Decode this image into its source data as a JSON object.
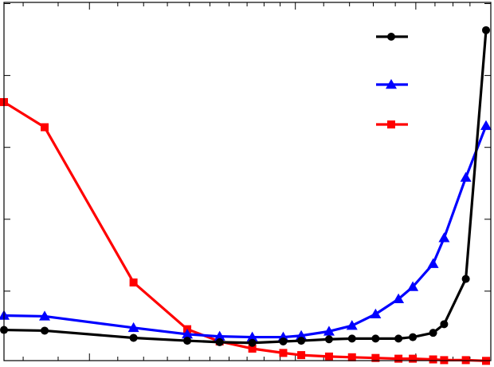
{
  "chart_data": {
    "type": "line",
    "x_scale": "log",
    "y_scale": "linear",
    "grid": false,
    "legend_position": "top-right",
    "xlim": [
      0.75,
      3.8
    ],
    "ylim": [
      0.0,
      0.505
    ],
    "x_major_ticks": [
      1,
      2,
      3
    ],
    "y_major_ticks": [
      0.1,
      0.2,
      0.3,
      0.4,
      0.5
    ],
    "series": [
      {
        "color": "#000000",
        "marker": "circle",
        "points": [
          {
            "x": 0.75,
            "y": 0.046
          },
          {
            "x": 0.86,
            "y": 0.045
          },
          {
            "x": 1.16,
            "y": 0.035
          },
          {
            "x": 1.39,
            "y": 0.031
          },
          {
            "x": 1.55,
            "y": 0.029
          },
          {
            "x": 1.73,
            "y": 0.028
          },
          {
            "x": 1.92,
            "y": 0.03
          },
          {
            "x": 2.04,
            "y": 0.031
          },
          {
            "x": 2.24,
            "y": 0.033
          },
          {
            "x": 2.42,
            "y": 0.034
          },
          {
            "x": 2.62,
            "y": 0.034
          },
          {
            "x": 2.83,
            "y": 0.034
          },
          {
            "x": 2.97,
            "y": 0.036
          },
          {
            "x": 3.18,
            "y": 0.042
          },
          {
            "x": 3.3,
            "y": 0.054
          },
          {
            "x": 3.55,
            "y": 0.117
          },
          {
            "x": 3.8,
            "y": 0.463
          }
        ]
      },
      {
        "color": "#0000ff",
        "marker": "triangle",
        "points": [
          {
            "x": 0.75,
            "y": 0.066
          },
          {
            "x": 0.86,
            "y": 0.065
          },
          {
            "x": 1.16,
            "y": 0.049
          },
          {
            "x": 1.39,
            "y": 0.04
          },
          {
            "x": 1.55,
            "y": 0.037
          },
          {
            "x": 1.73,
            "y": 0.036
          },
          {
            "x": 1.92,
            "y": 0.036
          },
          {
            "x": 2.04,
            "y": 0.038
          },
          {
            "x": 2.24,
            "y": 0.044
          },
          {
            "x": 2.42,
            "y": 0.052
          },
          {
            "x": 2.62,
            "y": 0.068
          },
          {
            "x": 2.83,
            "y": 0.089
          },
          {
            "x": 2.97,
            "y": 0.106
          },
          {
            "x": 3.18,
            "y": 0.138
          },
          {
            "x": 3.3,
            "y": 0.174
          },
          {
            "x": 3.55,
            "y": 0.258
          },
          {
            "x": 3.8,
            "y": 0.33
          }
        ]
      },
      {
        "color": "#ff0000",
        "marker": "square",
        "points": [
          {
            "x": 0.75,
            "y": 0.363
          },
          {
            "x": 0.86,
            "y": 0.328
          },
          {
            "x": 1.16,
            "y": 0.112
          },
          {
            "x": 1.39,
            "y": 0.047
          },
          {
            "x": 1.55,
            "y": 0.03
          },
          {
            "x": 1.73,
            "y": 0.02
          },
          {
            "x": 1.92,
            "y": 0.014
          },
          {
            "x": 2.04,
            "y": 0.011
          },
          {
            "x": 2.24,
            "y": 0.009
          },
          {
            "x": 2.42,
            "y": 0.008
          },
          {
            "x": 2.62,
            "y": 0.007
          },
          {
            "x": 2.83,
            "y": 0.006
          },
          {
            "x": 2.97,
            "y": 0.006
          },
          {
            "x": 3.18,
            "y": 0.005
          },
          {
            "x": 3.3,
            "y": 0.004
          },
          {
            "x": 3.55,
            "y": 0.004
          },
          {
            "x": 3.8,
            "y": 0.003
          }
        ]
      }
    ]
  }
}
